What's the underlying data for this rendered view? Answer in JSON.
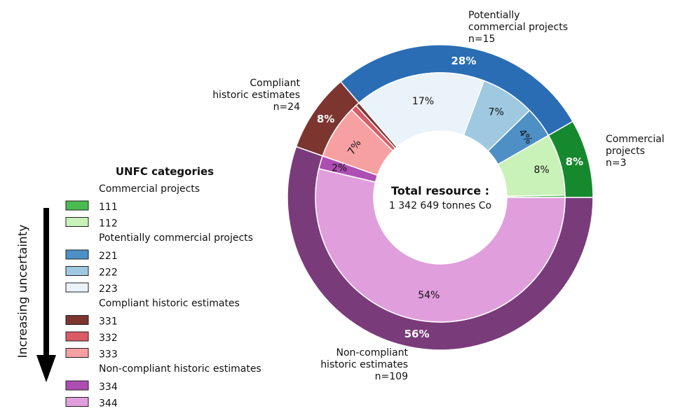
{
  "chart_data": {
    "type": "pie",
    "center": {
      "title": "Total resource :",
      "subtitle": "1 342 649 tonnes Co"
    },
    "outer_ring": [
      {
        "group": "Commercial projects",
        "label": "8%",
        "value": 8.3,
        "color": "#16882e",
        "annotation": [
          "Commercial",
          "projects",
          "n=3"
        ]
      },
      {
        "group": "Potentially commercial projects",
        "label": "28%",
        "value": 28.0,
        "color": "#2a6db5",
        "annotation": [
          "Potentially",
          "commercial projects",
          "n=15"
        ]
      },
      {
        "group": "Compliant historic estimates",
        "label": "8%",
        "value": 8.3,
        "color": "#7d3530",
        "annotation": [
          "Compliant",
          "historic estimates",
          "n=24"
        ]
      },
      {
        "group": "Non-compliant historic estimates",
        "label": "56%",
        "value": 55.4,
        "color": "#7a3b7b",
        "annotation": [
          "Non-compliant",
          "historic estimates",
          "n=109"
        ]
      }
    ],
    "inner_ring": [
      {
        "code": "111",
        "label": "",
        "value": 0.3,
        "color": "#4cbb4f"
      },
      {
        "code": "112",
        "label": "8%",
        "value": 8.0,
        "color": "#c9f2b8"
      },
      {
        "code": "221",
        "label": "4%",
        "value": 4.0,
        "color": "#4e8fc6"
      },
      {
        "code": "222",
        "label": "7%",
        "value": 7.0,
        "color": "#9ec9e1"
      },
      {
        "code": "223",
        "label": "17%",
        "value": 17.0,
        "color": "#eaf2fa"
      },
      {
        "code": "331",
        "label": "",
        "value": 0.5,
        "color": "#7d3530"
      },
      {
        "code": "332",
        "label": "",
        "value": 0.8,
        "color": "#d95b66"
      },
      {
        "code": "333",
        "label": "7%",
        "value": 7.0,
        "color": "#f7a0a2"
      },
      {
        "code": "334",
        "label": "2%",
        "value": 1.7,
        "color": "#ad4eb3"
      },
      {
        "code": "344",
        "label": "54%",
        "value": 53.7,
        "color": "#e09fdc"
      }
    ],
    "legend": {
      "title": "UNFC categories",
      "placement": "left",
      "groups": [
        {
          "name": "Commercial projects",
          "items": [
            {
              "code": "111",
              "color": "#4cbb4f"
            },
            {
              "code": "112",
              "color": "#c9f2b8"
            }
          ]
        },
        {
          "name": "Potentially commercial projects",
          "items": [
            {
              "code": "221",
              "color": "#4e8fc6"
            },
            {
              "code": "222",
              "color": "#9ec9e1"
            },
            {
              "code": "223",
              "color": "#eaf2fa"
            }
          ]
        },
        {
          "name": "Compliant historic estimates",
          "items": [
            {
              "code": "331",
              "color": "#7d3530"
            },
            {
              "code": "332",
              "color": "#d95b66"
            },
            {
              "code": "333",
              "color": "#f7a0a2"
            }
          ]
        },
        {
          "name": "Non-compliant historic estimates",
          "items": [
            {
              "code": "334",
              "color": "#ad4eb3"
            },
            {
              "code": "344",
              "color": "#e09fdc"
            }
          ]
        }
      ]
    },
    "uncertainty_axis": {
      "label": "Increasing uncertainty",
      "direction": "down"
    }
  }
}
